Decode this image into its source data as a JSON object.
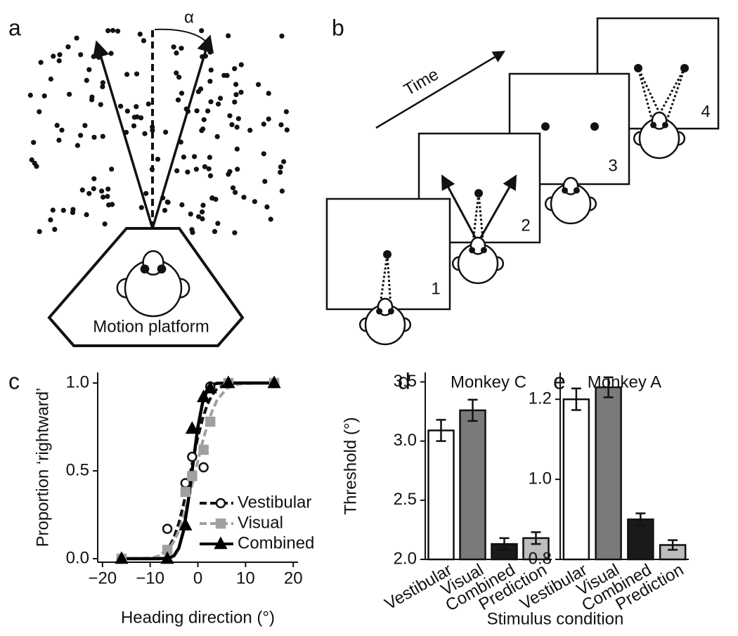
{
  "panels": {
    "a": {
      "label": "a",
      "angle_label": "α",
      "platform_label": "Motion platform"
    },
    "b": {
      "label": "b",
      "time_label": "Time",
      "frame_numbers": [
        "1",
        "2",
        "3",
        "4"
      ]
    },
    "c": {
      "label": "c"
    },
    "d": {
      "label": "d"
    },
    "e": {
      "label": "e"
    },
    "shared_x_label": "Stimulus condition"
  },
  "chart_data": [
    {
      "type": "line",
      "x_label": "Heading direction (°)",
      "y_label": "Proportion ‘rightward’",
      "x": [
        -16,
        -6.4,
        -2.6,
        -1.2,
        1.2,
        2.6,
        6.4,
        16
      ],
      "fit_x": [
        -16,
        -10,
        -8,
        -6,
        -5,
        -4,
        -3,
        -2,
        -1,
        0,
        1,
        2,
        3,
        4,
        6,
        8,
        10,
        16
      ],
      "series": [
        {
          "name": "Vestibular",
          "color": "#111111",
          "marker": "circle",
          "line_style": "dashed",
          "values": [
            0,
            0.17,
            0.43,
            0.58,
            0.52,
            0.98,
            1.0,
            1.0
          ],
          "fit_values": [
            0,
            0.002,
            0.015,
            0.067,
            0.121,
            0.203,
            0.309,
            0.434,
            0.566,
            0.691,
            0.797,
            0.879,
            0.933,
            0.966,
            0.994,
            0.999,
            1,
            1
          ]
        },
        {
          "name": "Visual",
          "color": "#a0a0a0",
          "marker": "square",
          "line_style": "dashed",
          "values": [
            0,
            0.05,
            0.38,
            0.47,
            0.62,
            0.78,
            1.0,
            1.0
          ],
          "fit_values": [
            0,
            0.003,
            0.016,
            0.058,
            0.099,
            0.159,
            0.238,
            0.334,
            0.443,
            0.557,
            0.666,
            0.762,
            0.841,
            0.901,
            0.968,
            0.992,
            0.997,
            1
          ]
        },
        {
          "name": "Combined",
          "color": "#000000",
          "marker": "triangle",
          "line_style": "solid",
          "values": [
            0,
            0,
            0.19,
            0.74,
            0.92,
            0.97,
            1.0,
            1.0
          ],
          "fit_values": [
            0,
            0,
            0,
            0.004,
            0.017,
            0.06,
            0.159,
            0.33,
            0.544,
            0.749,
            0.889,
            0.962,
            0.99,
            0.998,
            1,
            1,
            1,
            1
          ]
        }
      ],
      "xlim": [
        -21,
        21
      ],
      "xticks": [
        {
          "value": -20,
          "label": "−20"
        },
        {
          "value": -10,
          "label": "−10"
        },
        0,
        10,
        20
      ],
      "ylim": [
        -0.02,
        1.06
      ],
      "yticks": [
        {
          "value": 0,
          "label": "0.0"
        },
        {
          "value": 0.5,
          "label": "0.5"
        },
        {
          "value": 1,
          "label": "1.0"
        }
      ],
      "legend": "lower right"
    },
    {
      "type": "bar",
      "title": "Monkey C",
      "y_label": "Threshold (°)",
      "categories": [
        "Vestibular",
        "Visual",
        "Combined",
        "Prediction"
      ],
      "values": [
        3.09,
        3.26,
        2.13,
        2.18
      ],
      "errors": [
        0.09,
        0.09,
        0.05,
        0.05
      ],
      "colors": [
        "#ffffff",
        "#7a7a7a",
        "#1a1a1a",
        "#bdbdbd"
      ],
      "ylim": [
        2.0,
        3.58
      ],
      "yticks": [
        {
          "value": 2.0,
          "label": "2.0"
        },
        {
          "value": 2.5,
          "label": "2.5"
        },
        {
          "value": 3.0,
          "label": "3.0"
        },
        {
          "value": 3.5,
          "label": "3.5"
        }
      ]
    },
    {
      "type": "bar",
      "title": "Monkey A",
      "categories": [
        "Vestibular",
        "Visual",
        "Combined",
        "Prediction"
      ],
      "values": [
        1.2,
        1.23,
        0.9,
        0.836
      ],
      "errors": [
        0.027,
        0.025,
        0.015,
        0.012
      ],
      "colors": [
        "#ffffff",
        "#7a7a7a",
        "#1a1a1a",
        "#bdbdbd"
      ],
      "ylim": [
        0.8,
        1.267
      ],
      "yticks": [
        {
          "value": 0.8,
          "label": "0.8"
        },
        {
          "value": 1.0,
          "label": "1.0"
        },
        {
          "value": 1.2,
          "label": "1.2"
        }
      ]
    }
  ]
}
